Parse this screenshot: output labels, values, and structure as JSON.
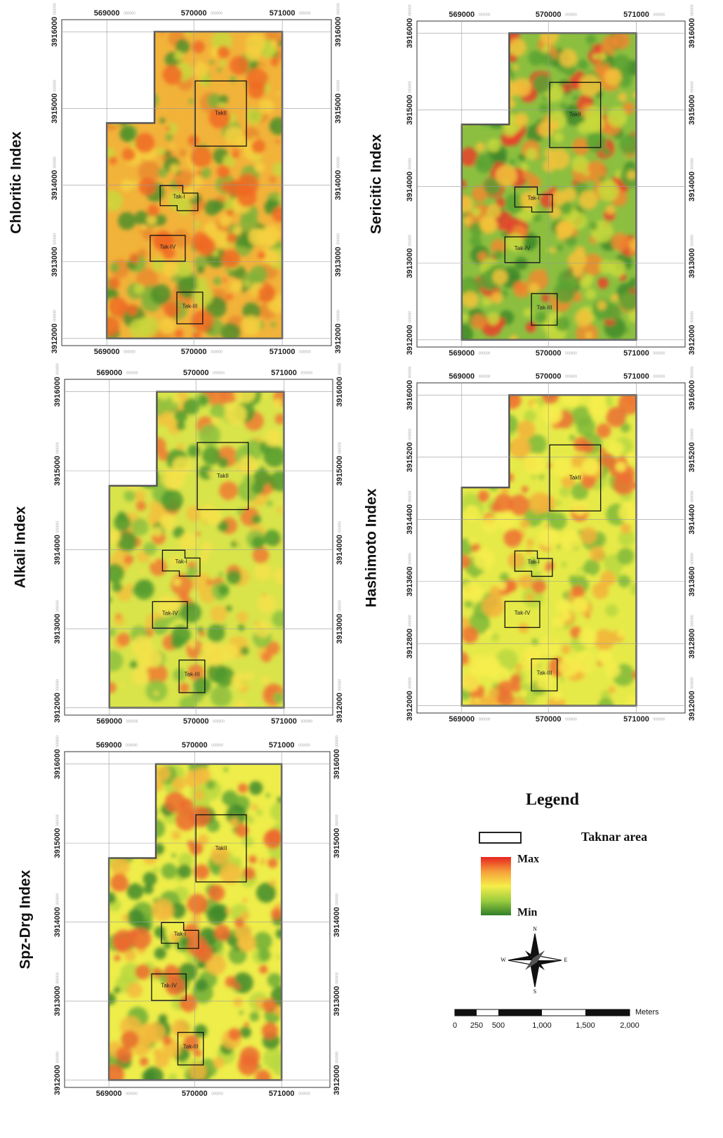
{
  "tick_suffix": "000000",
  "panels": [
    {
      "title": "Chloritic Index",
      "x_ticks": [
        "569000",
        "570000",
        "571000"
      ],
      "y_ticks": [
        "3912000",
        "3913000",
        "3914000",
        "3915000",
        "3916000"
      ],
      "areas": [
        "TakII",
        "Tak-I",
        "Tak-IV",
        "Tak-III"
      ],
      "colors": [
        "#f2b33a",
        "#e98a2e",
        "#7fb23a",
        "#4f8f2a",
        "#c9d63c",
        "#f6d040",
        "#f06a24"
      ]
    },
    {
      "title": "Sericitic Index",
      "x_ticks": [
        "569000",
        "570000",
        "571000"
      ],
      "y_ticks": [
        "3912000",
        "3913000",
        "3914000",
        "3915000",
        "3916000"
      ],
      "areas": [
        "TakII",
        "Tak-I",
        "Tak-IV",
        "Tak-III"
      ],
      "colors": [
        "#8cbf3f",
        "#3f8a2c",
        "#e9402a",
        "#f08a2e",
        "#c8d93c",
        "#5aa233",
        "#f3c23a"
      ]
    },
    {
      "title": "Alkali Index",
      "x_ticks": [
        "569000",
        "570000",
        "571000"
      ],
      "y_ticks": [
        "3912000",
        "3913000",
        "3914000",
        "3915000",
        "3916000"
      ],
      "areas": [
        "TakII",
        "Tak-I",
        "Tak-IV",
        "Tak-III"
      ],
      "colors": [
        "#d9e44a",
        "#f2c13d",
        "#ee7a34",
        "#8cc13f",
        "#4f9a2e",
        "#f4e24a"
      ]
    },
    {
      "title": "Hashimoto Index",
      "x_ticks": [
        "569000",
        "570000",
        "571000"
      ],
      "y_ticks": [
        "3912000",
        "3912800",
        "3913600",
        "3914400",
        "3915200",
        "3916000"
      ],
      "areas": [
        "TakII",
        "Tak-I",
        "Tak-IV",
        "Tak-III"
      ],
      "colors": [
        "#e6ea48",
        "#b9d840",
        "#7fb83a",
        "#f3b23b",
        "#ee7032",
        "#f7ee4c"
      ]
    },
    {
      "title": "Spz-Drg Index",
      "x_ticks": [
        "569000",
        "570000",
        "571000"
      ],
      "y_ticks": [
        "3912000",
        "3913000",
        "3914000",
        "3915000",
        "3916000"
      ],
      "areas": [
        "TakII",
        "Tak-I",
        "Tak-IV",
        "Tak-III"
      ],
      "colors": [
        "#eeed4a",
        "#b9d840",
        "#6fae36",
        "#3f8a2c",
        "#f3b83c",
        "#ec6a2e"
      ]
    }
  ],
  "legend": {
    "title": "Legend",
    "area": "Taknar area",
    "max": "Max",
    "min": "Min",
    "ramp_colors": [
      "#e8241f",
      "#f5a03a",
      "#f6ee4a",
      "#9ccc3f",
      "#2f7f28"
    ],
    "compass": {
      "n": "N",
      "s": "S",
      "e": "E",
      "w": "W"
    },
    "scale": {
      "unit": "Meters",
      "labels": [
        "0",
        "250",
        "500",
        "1,000",
        "1,500",
        "2,000"
      ]
    }
  }
}
